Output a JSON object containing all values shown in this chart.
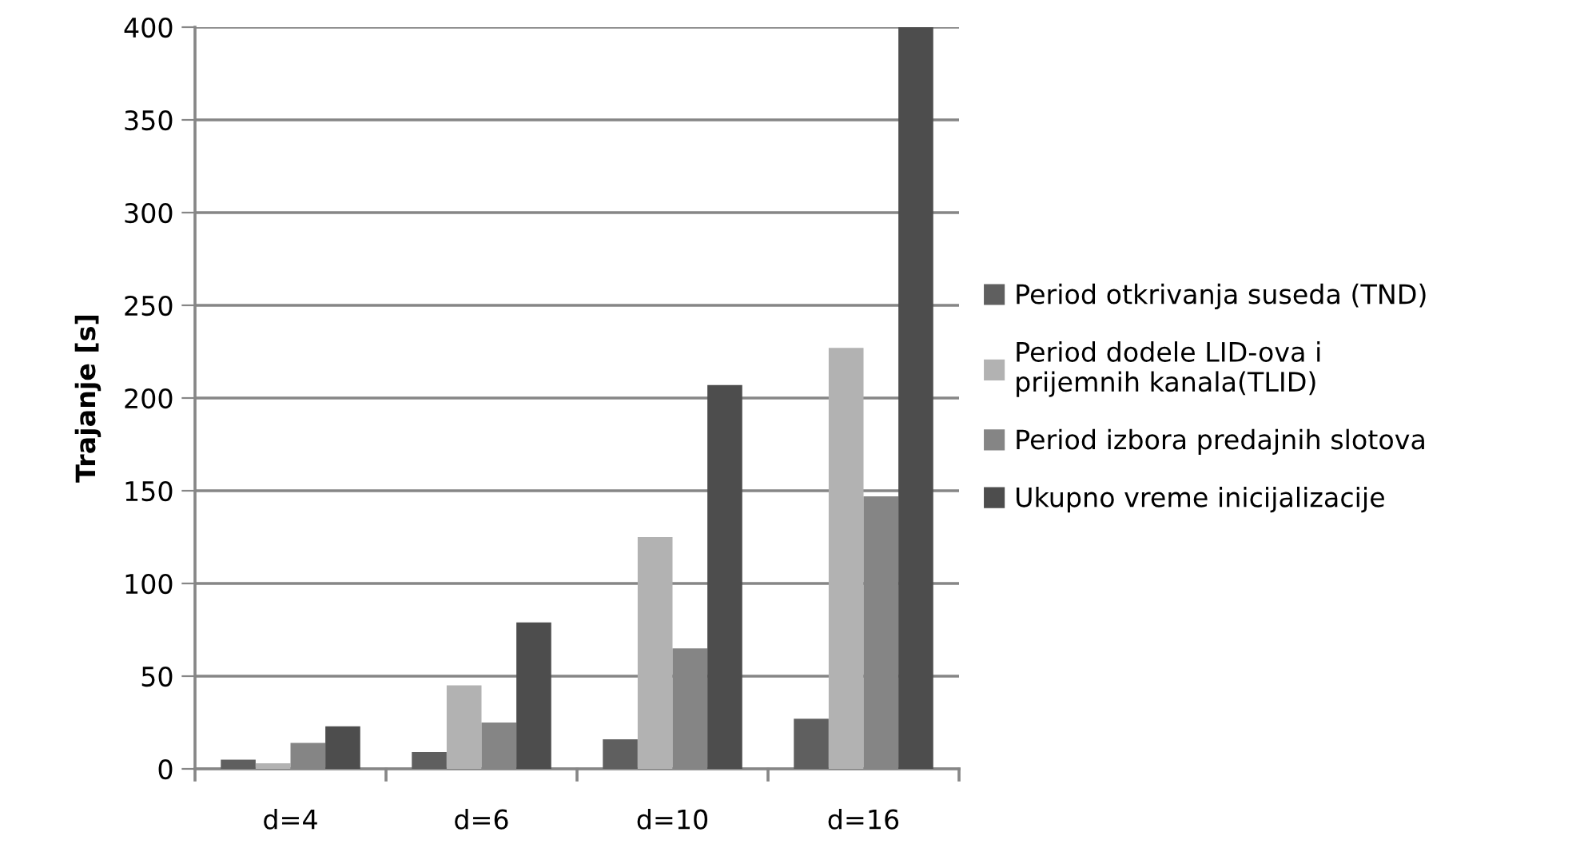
{
  "chart_data": {
    "type": "bar",
    "ylabel": "Trajanje [s]",
    "categories": [
      "d=4",
      "d=6",
      "d=10",
      "d=16"
    ],
    "series": [
      {
        "name": "Period otkrivanja suseda (TND)",
        "color": "#5f5f5f",
        "values": [
          5,
          9,
          16,
          27
        ]
      },
      {
        "name": "Period dodele LID-ova i\nprijemnih kanala(TLID)",
        "color": "#b2b2b2",
        "values": [
          3,
          45,
          125,
          227
        ]
      },
      {
        "name": "Period izbora predajnih slotova",
        "color": "#858585",
        "values": [
          14,
          25,
          65,
          147
        ]
      },
      {
        "name": "Ukupno vreme inicijalizacije",
        "color": "#4d4d4d",
        "values": [
          23,
          79,
          207,
          400
        ]
      }
    ],
    "ylim": [
      0,
      400
    ],
    "yticks": [
      0,
      50,
      100,
      150,
      200,
      250,
      300,
      350,
      400
    ],
    "grid": "y",
    "legend": "right"
  }
}
